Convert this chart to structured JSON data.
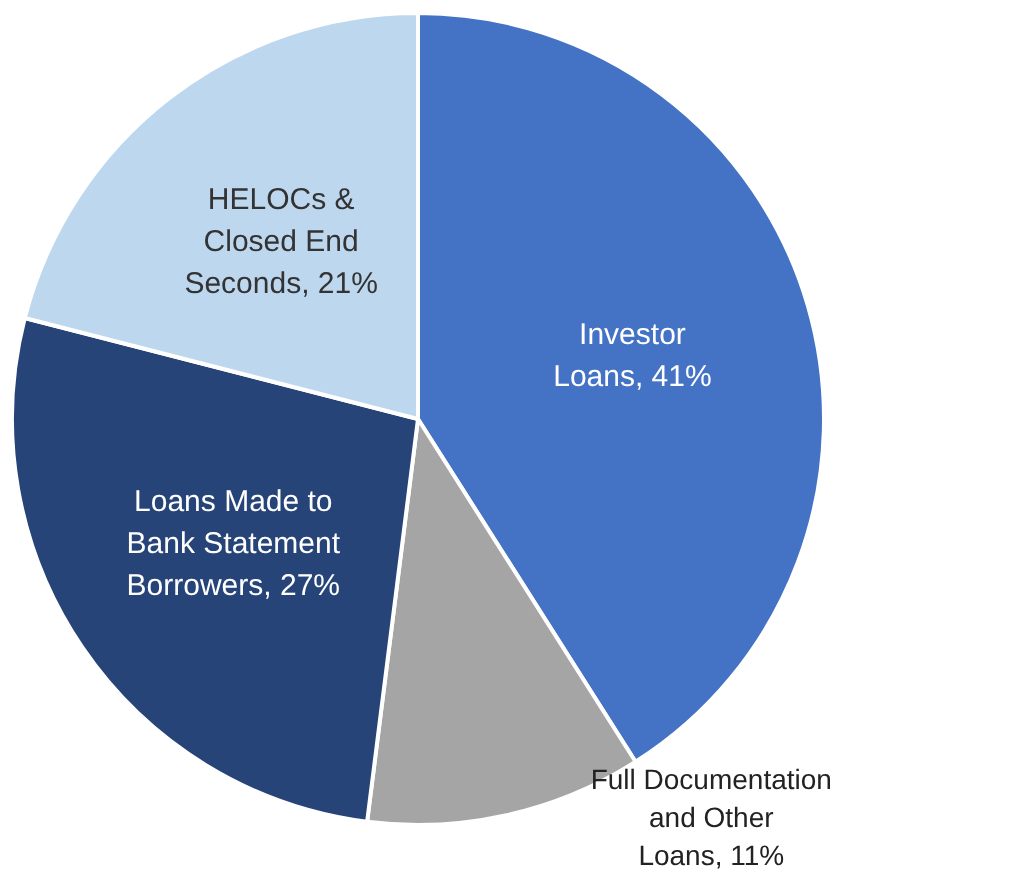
{
  "chart_data": {
    "type": "pie",
    "categories": [
      "Investor Loans",
      "Full Documentation and Other Loans",
      "Loans Made to Bank Statement Borrowers",
      "HELOCs & Closed End Seconds"
    ],
    "values": [
      41,
      11,
      27,
      21
    ],
    "value_labels": [
      "41%",
      "11%",
      "27%",
      "21%"
    ],
    "colors": [
      "#4472c4",
      "#a5a5a5",
      "#264478",
      "#bdd7ee"
    ],
    "legend": false
  }
}
